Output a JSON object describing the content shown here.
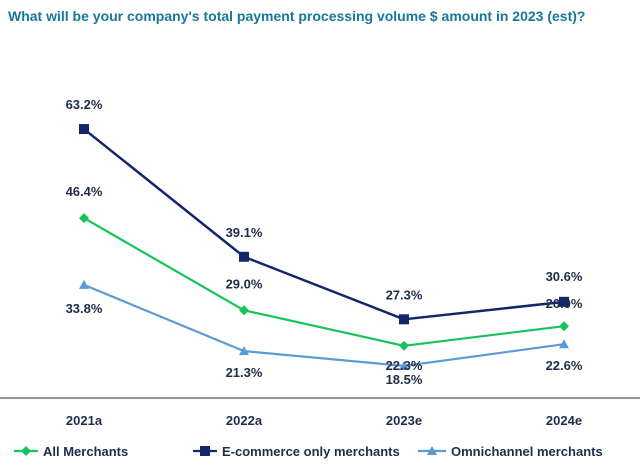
{
  "chart_data": {
    "type": "line",
    "title": "What will be your company's total payment processing volume $ amount in 2023 (est)?",
    "categories": [
      "2021a",
      "2022a",
      "2023e",
      "2024e"
    ],
    "ylim": [
      0,
      80
    ],
    "grid": false,
    "legend_position": "bottom",
    "series": [
      {
        "name": "All Merchants",
        "color": "#14c45a",
        "marker": "diamond",
        "values": [
          46.4,
          29.0,
          22.3,
          26.0
        ],
        "labels": [
          "46.4%",
          "29.0%",
          "22.3%",
          "26.0%"
        ]
      },
      {
        "name": "E-commerce only merchants",
        "color": "#13266b",
        "marker": "square",
        "values": [
          63.2,
          39.1,
          27.3,
          30.6
        ],
        "labels": [
          "63.2%",
          "39.1%",
          "27.3%",
          "30.6%"
        ]
      },
      {
        "name": "Omnichannel merchants",
        "color": "#5b9bd5",
        "marker": "triangle",
        "values": [
          33.8,
          21.3,
          18.5,
          22.6
        ],
        "labels": [
          "33.8%",
          "21.3%",
          "18.5%",
          "22.6%"
        ]
      }
    ]
  }
}
